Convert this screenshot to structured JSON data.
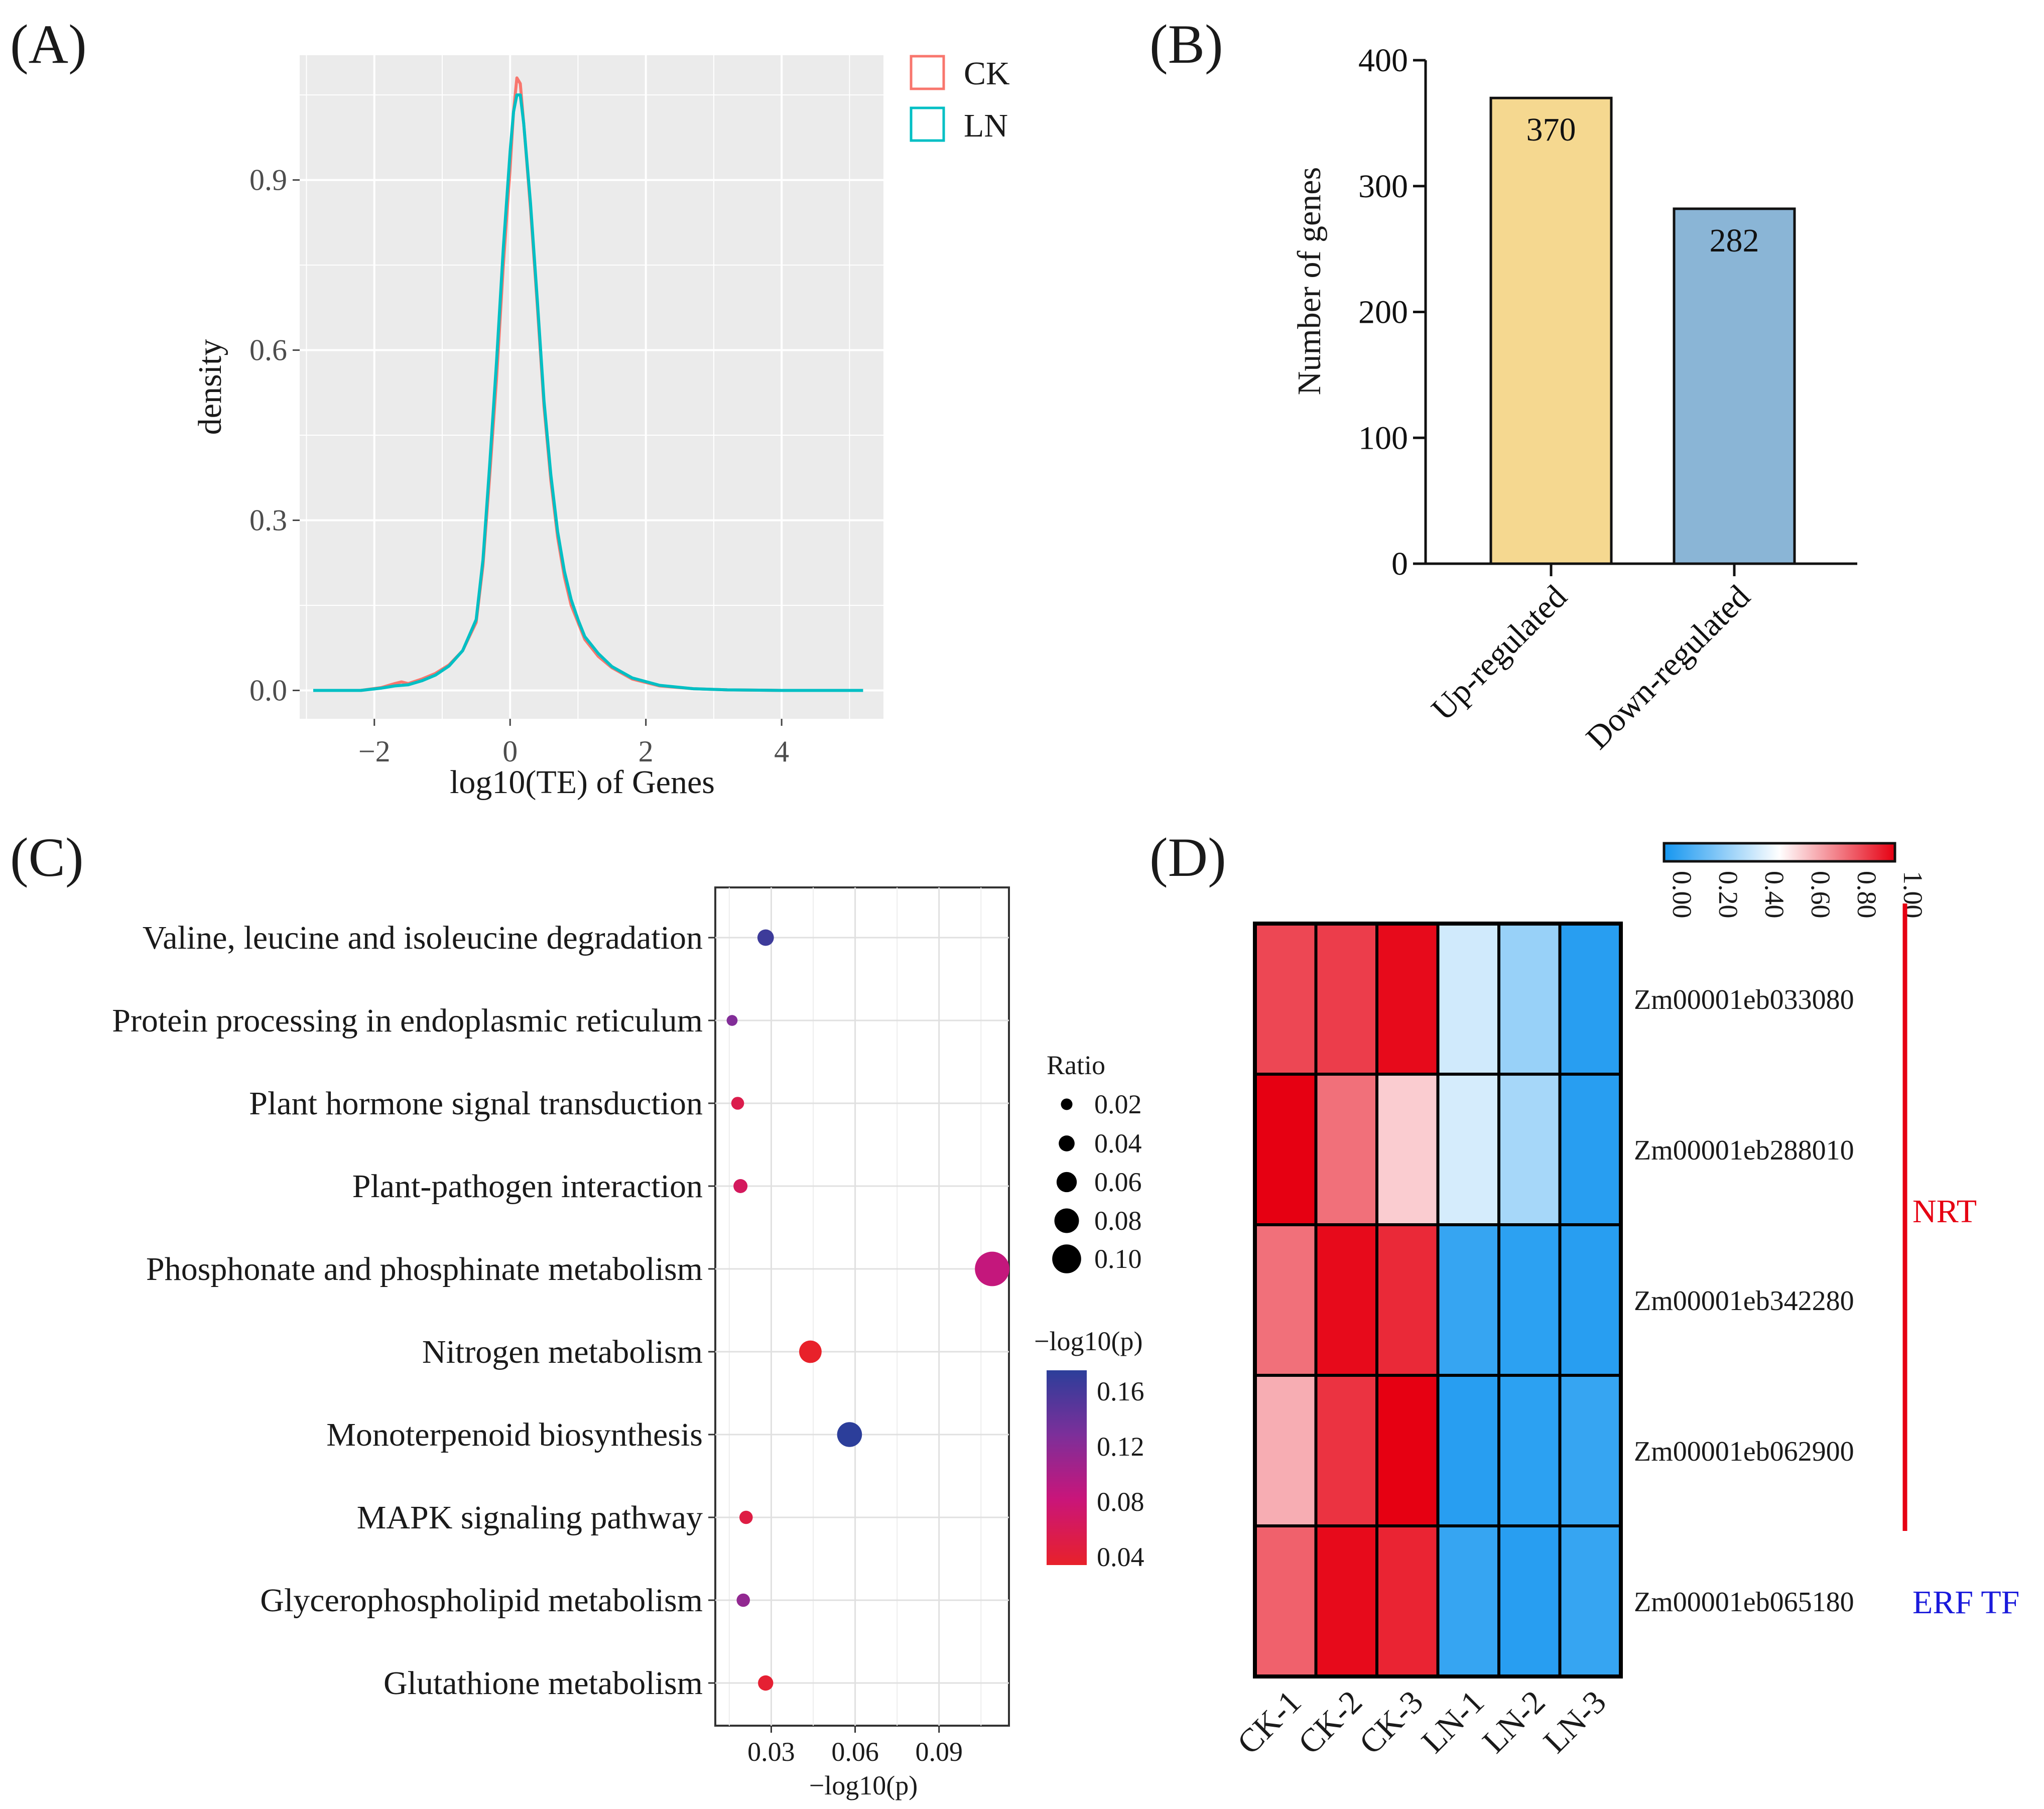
{
  "panels": {
    "a": {
      "tag": "(A)"
    },
    "b": {
      "tag": "(B)"
    },
    "c": {
      "tag": "(C)"
    },
    "d": {
      "tag": "(D)"
    }
  },
  "chart_data": [
    {
      "panel": "A",
      "type": "line",
      "title": "",
      "xlabel": "log10(TE) of Genes",
      "ylabel": "density",
      "xlim": [
        -3.1,
        5.5
      ],
      "ylim": [
        -0.05,
        1.12
      ],
      "x_ticks": [
        "−2",
        "0",
        "2",
        "4"
      ],
      "y_ticks": [
        "0.0",
        "0.3",
        "0.6",
        "0.9"
      ],
      "legend": {
        "position": "right",
        "entries": [
          "CK",
          "LN"
        ]
      },
      "grid": true,
      "series": [
        {
          "name": "CK",
          "color": "#f8766d",
          "x": [
            -2.9,
            -2.2,
            -1.9,
            -1.7,
            -1.6,
            -1.5,
            -1.3,
            -1.1,
            -0.9,
            -0.7,
            -0.5,
            -0.4,
            -0.3,
            -0.2,
            -0.1,
            0.0,
            0.05,
            0.1,
            0.15,
            0.2,
            0.3,
            0.4,
            0.5,
            0.6,
            0.7,
            0.8,
            0.9,
            1.0,
            1.1,
            1.3,
            1.5,
            1.8,
            2.2,
            2.7,
            3.2,
            4.0,
            5.2
          ],
          "y": [
            0.0,
            0.0,
            0.005,
            0.012,
            0.015,
            0.012,
            0.02,
            0.03,
            0.045,
            0.07,
            0.12,
            0.22,
            0.38,
            0.55,
            0.75,
            0.92,
            1.02,
            1.08,
            1.07,
            1.0,
            0.85,
            0.68,
            0.5,
            0.37,
            0.27,
            0.2,
            0.15,
            0.12,
            0.09,
            0.06,
            0.04,
            0.02,
            0.008,
            0.003,
            0.001,
            0.0,
            0.0
          ]
        },
        {
          "name": "LN",
          "color": "#00bfc4",
          "x": [
            -2.9,
            -2.2,
            -1.9,
            -1.7,
            -1.5,
            -1.3,
            -1.1,
            -0.9,
            -0.7,
            -0.5,
            -0.4,
            -0.3,
            -0.2,
            -0.1,
            0.0,
            0.05,
            0.1,
            0.15,
            0.2,
            0.3,
            0.4,
            0.5,
            0.6,
            0.7,
            0.8,
            0.9,
            1.0,
            1.1,
            1.3,
            1.5,
            1.8,
            2.2,
            2.7,
            3.2,
            4.0,
            5.2
          ],
          "y": [
            0.0,
            0.0,
            0.004,
            0.008,
            0.01,
            0.017,
            0.027,
            0.043,
            0.07,
            0.125,
            0.23,
            0.4,
            0.58,
            0.78,
            0.95,
            1.02,
            1.05,
            1.05,
            1.0,
            0.86,
            0.69,
            0.51,
            0.38,
            0.28,
            0.21,
            0.16,
            0.125,
            0.095,
            0.065,
            0.042,
            0.022,
            0.009,
            0.003,
            0.001,
            0.0,
            0.0
          ]
        }
      ]
    },
    {
      "panel": "B",
      "type": "bar",
      "title": "",
      "xlabel": "",
      "ylabel": "Number of genes",
      "ylim": [
        0,
        400
      ],
      "y_ticks": [
        "0",
        "100",
        "200",
        "300",
        "400"
      ],
      "categories": [
        "Up-regulated",
        "Down-regulated"
      ],
      "values": [
        370,
        282
      ],
      "value_labels": [
        "370",
        "282"
      ],
      "colors": [
        "#f5d890",
        "#8ab5d6"
      ]
    },
    {
      "panel": "C",
      "type": "scatter",
      "title": "",
      "xlabel": "−log10(p)",
      "ylabel": "",
      "xlim": [
        0.01,
        0.115
      ],
      "x_ticks": [
        "0.03",
        "0.06",
        "0.09"
      ],
      "grid": true,
      "categories": [
        "Valine, leucine and isoleucine degradation",
        "Protein processing in endoplasmic reticulum",
        "Plant hormone signal transduction",
        "Plant-pathogen interaction",
        "Phosphonate and phosphinate metabolism",
        "Nitrogen metabolism",
        "Monoterpenoid biosynthesis",
        "MAPK signaling pathway",
        "Glycerophospholipid metabolism",
        "Glutathione metabolism"
      ],
      "x": [
        0.028,
        0.016,
        0.018,
        0.019,
        0.109,
        0.044,
        0.058,
        0.021,
        0.02,
        0.028
      ],
      "ratio": [
        0.035,
        0.012,
        0.02,
        0.025,
        0.11,
        0.06,
        0.07,
        0.022,
        0.022,
        0.03
      ],
      "color_value": [
        0.16,
        0.12,
        0.05,
        0.06,
        0.08,
        0.03,
        0.17,
        0.045,
        0.11,
        0.035
      ],
      "size_legend": {
        "title": "Ratio",
        "values": [
          0.02,
          0.04,
          0.06,
          0.08,
          0.1
        ],
        "labels": [
          "0.02",
          "0.04",
          "0.06",
          "0.08",
          "0.10"
        ]
      },
      "color_legend": {
        "title": "−log10(p)",
        "labels": [
          "0.16",
          "0.12",
          "0.08",
          "0.04"
        ],
        "colors": [
          "#2c3e9a",
          "#7c2f9a",
          "#c9157a",
          "#e8212a"
        ]
      }
    },
    {
      "panel": "D",
      "type": "heatmap",
      "title": "",
      "columns": [
        "CK-1",
        "CK-2",
        "CK-3",
        "LN-1",
        "LN-2",
        "LN-3"
      ],
      "rows": [
        "Zm00001eb033080",
        "Zm00001eb288010",
        "Zm00001eb342280",
        "Zm00001eb062900",
        "Zm00001eb065180"
      ],
      "values": [
        [
          0.86,
          0.88,
          0.98,
          0.4,
          0.28,
          0.04
        ],
        [
          1.0,
          0.78,
          0.6,
          0.41,
          0.31,
          0.04
        ],
        [
          0.78,
          0.98,
          0.92,
          0.07,
          0.05,
          0.04
        ],
        [
          0.66,
          0.9,
          1.0,
          0.04,
          0.05,
          0.07
        ],
        [
          0.81,
          0.98,
          0.93,
          0.07,
          0.04,
          0.07
        ]
      ],
      "color_scale": {
        "min": 0.0,
        "max": 1.0,
        "low": "#1596f0",
        "mid": "#ffffff",
        "high": "#e60012",
        "labels": [
          "0.00",
          "0.20",
          "0.40",
          "0.60",
          "0.80",
          "1.00"
        ]
      },
      "annotations": [
        {
          "label": "NRT",
          "rows": [
            0,
            3
          ],
          "color": "#e60012"
        },
        {
          "label": "ERF TF",
          "rows": [
            4,
            4
          ],
          "color": "#1a1adb"
        }
      ]
    }
  ]
}
